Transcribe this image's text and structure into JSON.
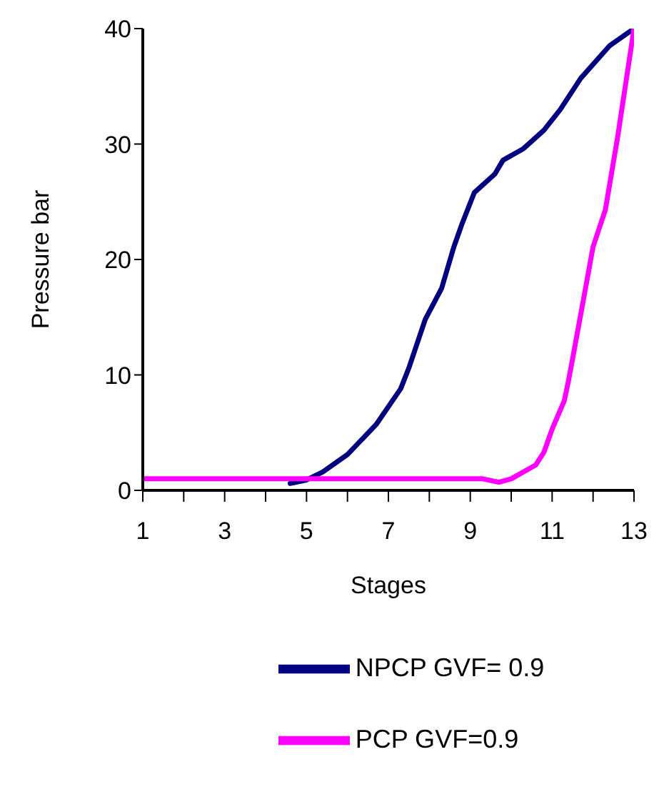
{
  "chart_data": {
    "type": "line",
    "xlabel": "Stages",
    "ylabel": "Pressure bar",
    "xlim": [
      1,
      13
    ],
    "xticks": [
      1,
      {
        "value": 2,
        "label": null
      },
      3,
      {
        "value": 4,
        "label": null
      },
      5,
      {
        "value": 6,
        "label": null
      },
      7,
      {
        "value": 8,
        "label": null
      },
      9,
      {
        "value": 10,
        "label": null
      },
      11,
      {
        "value": 12,
        "label": null
      },
      13
    ],
    "ylim": [
      0,
      40
    ],
    "yticks": [
      0,
      10,
      20,
      30,
      40
    ],
    "grid": false,
    "legend": "bottom",
    "marker": "none",
    "line_style": "solid",
    "series": [
      {
        "name": "NPCP   GVF= 0.9",
        "color": "#000080",
        "x": [
          4.6,
          5,
          5.4,
          6,
          6.7,
          7.3,
          7.5,
          7.9,
          8.3,
          8.6,
          8.8,
          9.1,
          9.6,
          9.8,
          10.3,
          10.8,
          11.2,
          11.7,
          12.4,
          13
        ],
        "values": [
          0.6,
          0.9,
          1.6,
          3.1,
          5.7,
          8.8,
          10.6,
          14.8,
          17.5,
          21.1,
          23.1,
          25.8,
          27.4,
          28.6,
          29.6,
          31.2,
          33,
          35.7,
          38.5,
          40
        ]
      },
      {
        "name": "PCP  GVF=0.9",
        "color": "#ff00ff",
        "x": [
          1,
          3,
          5,
          7,
          9,
          9.3,
          9.7,
          10,
          10.6,
          10.8,
          11,
          11.3,
          11.4,
          11.5,
          11.8,
          12,
          12.3,
          12.6,
          13
        ],
        "values": [
          1,
          1,
          1,
          1,
          1,
          1,
          0.7,
          1,
          2.2,
          3.3,
          5.3,
          7.8,
          9.5,
          11.4,
          17.2,
          21.1,
          24.3,
          30.6,
          40
        ]
      }
    ]
  }
}
